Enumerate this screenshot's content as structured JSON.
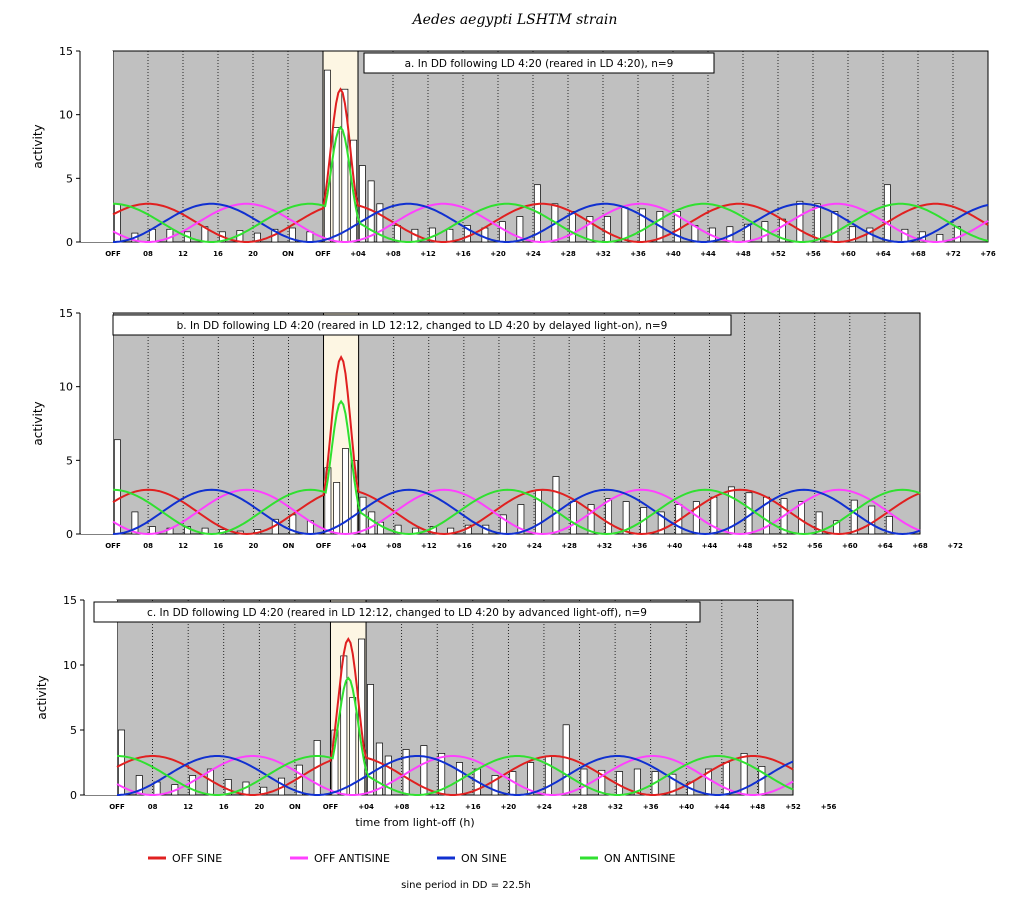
{
  "figure_title": "Aedes aegypti LSHTM strain",
  "legend": [
    {
      "label": "OFF SINE",
      "color": "#e02020"
    },
    {
      "label": "OFF ANTISINE",
      "color": "#ff40ff"
    },
    {
      "label": "ON SINE",
      "color": "#1030d0"
    },
    {
      "label": "ON ANTISINE",
      "color": "#30e030"
    }
  ],
  "footnote": "sine period in DD = 22.5h",
  "colors": {
    "background": "#c0c0c0",
    "light_phase": "#fdf6e3",
    "bar_fill": "#ffffff",
    "bar_stroke": "#000000"
  },
  "chart_data": [
    {
      "type": "bar",
      "title": "a. In DD following LD 4:20 (reared in LD 4:20), n=9",
      "ylabel": "activity",
      "xlabel": "",
      "ylim": [
        0,
        15
      ],
      "yticks": [
        0,
        5,
        10,
        15
      ],
      "xlim": [
        0,
        100
      ],
      "light_on_window": [
        24,
        28
      ],
      "xtick_labels": [
        "OFF",
        "08",
        "12",
        "16",
        "20",
        "ON",
        "OFF",
        "+04",
        "+08",
        "+12",
        "+16",
        "+20",
        "+24",
        "+28",
        "+32",
        "+36",
        "+40",
        "+44",
        "+48",
        "+52",
        "+56",
        "+60",
        "+64",
        "+68",
        "+72",
        "+76"
      ],
      "series": [
        {
          "name": "activity",
          "x": [
            0,
            2,
            4,
            6,
            8,
            10,
            12,
            14,
            16,
            18,
            20,
            22,
            24,
            25,
            26,
            27,
            28,
            29,
            30,
            32,
            34,
            36,
            38,
            40,
            42,
            44,
            46,
            48,
            50,
            52,
            54,
            56,
            58,
            60,
            62,
            64,
            66,
            68,
            70,
            72,
            74,
            76,
            78,
            80,
            82,
            84,
            86,
            88,
            90,
            92,
            94,
            96
          ],
          "values": [
            3,
            0.7,
            1,
            1,
            0.8,
            1.2,
            0.8,
            0.9,
            0.7,
            1,
            1.1,
            0.8,
            13.5,
            9,
            12,
            8,
            6,
            4.8,
            3,
            1.3,
            1,
            1.1,
            1,
            1.3,
            1.1,
            1.6,
            2,
            4.5,
            3,
            2.4,
            2,
            2,
            2.7,
            2.6,
            2.4,
            2.4,
            1.3,
            1.1,
            1.2,
            1.4,
            1.6,
            1.8,
            3.2,
            3,
            2.4,
            1.2,
            1.1,
            4.5,
            1,
            0.8,
            0.6,
            1.2
          ]
        }
      ]
    },
    {
      "type": "bar",
      "title": "b. In DD following LD 4:20 (reared in LD 12:12, changed to LD 4:20 by delayed light-on), n=9",
      "ylabel": "activity",
      "xlabel": "",
      "ylim": [
        0,
        15
      ],
      "yticks": [
        0,
        5,
        10,
        15
      ],
      "xlim": [
        0,
        92
      ],
      "light_on_window": [
        24,
        28
      ],
      "xtick_labels": [
        "OFF",
        "08",
        "12",
        "16",
        "20",
        "ON",
        "OFF",
        "+04",
        "+08",
        "+12",
        "+16",
        "+20",
        "+24",
        "+28",
        "+32",
        "+36",
        "+40",
        "+44",
        "+48",
        "+52",
        "+56",
        "+60",
        "+64",
        "+68",
        "+72"
      ],
      "series": [
        {
          "name": "activity",
          "x": [
            0,
            2,
            4,
            6,
            8,
            10,
            12,
            14,
            16,
            18,
            20,
            22,
            24,
            25,
            26,
            27,
            28,
            29,
            30,
            32,
            34,
            36,
            38,
            40,
            42,
            44,
            46,
            48,
            50,
            52,
            54,
            56,
            58,
            60,
            62,
            64,
            66,
            68,
            70,
            72,
            74,
            76,
            78,
            80,
            82,
            84,
            86,
            88
          ],
          "values": [
            6.4,
            1.5,
            0.5,
            0.4,
            0.5,
            0.4,
            0.3,
            0.2,
            0.3,
            1,
            1.3,
            0.9,
            4.5,
            3.5,
            5.8,
            5,
            2.5,
            1.5,
            0.8,
            0.6,
            0.4,
            0.5,
            0.4,
            0.6,
            0.6,
            1.3,
            2,
            3,
            3.9,
            2.2,
            2,
            2.4,
            2.2,
            1.8,
            1.5,
            2,
            2.2,
            2.5,
            3.2,
            2.8,
            2.5,
            2.4,
            2.2,
            1.5,
            0.9,
            2.3,
            1.9,
            1.2
          ]
        }
      ]
    },
    {
      "type": "bar",
      "title": "c. In DD following LD 4:20 (reared in LD 12:12, changed to LD 4:20 by advanced light-off), n=9",
      "ylabel": "activity",
      "xlabel": "time from light-off (h)",
      "ylim": [
        0,
        15
      ],
      "yticks": [
        0,
        5,
        10,
        15
      ],
      "xlim": [
        0,
        76
      ],
      "light_on_window": [
        24,
        28
      ],
      "xtick_labels": [
        "OFF",
        "08",
        "12",
        "16",
        "20",
        "ON",
        "OFF",
        "+04",
        "+08",
        "+12",
        "+16",
        "+20",
        "+24",
        "+28",
        "+32",
        "+36",
        "+40",
        "+44",
        "+48",
        "+52",
        "+56"
      ],
      "series": [
        {
          "name": "activity",
          "x": [
            0,
            2,
            4,
            6,
            8,
            10,
            12,
            14,
            16,
            18,
            20,
            22,
            24,
            25,
            26,
            27,
            28,
            29,
            30,
            32,
            34,
            36,
            38,
            40,
            42,
            44,
            46,
            48,
            50,
            52,
            54,
            56,
            58,
            60,
            62,
            64,
            66,
            68,
            70,
            72
          ],
          "values": [
            5,
            1.5,
            1,
            0.8,
            1.5,
            2,
            1.2,
            1,
            0.6,
            1.3,
            2.3,
            4.2,
            5,
            10.7,
            7.5,
            12,
            8.5,
            4,
            3,
            3.5,
            3.8,
            3.2,
            2.5,
            2,
            1.5,
            1.8,
            2.5,
            3,
            5.4,
            2,
            1.9,
            1.8,
            2,
            1.8,
            1.6,
            1,
            2,
            2.5,
            3.2,
            2.2
          ]
        }
      ]
    }
  ]
}
